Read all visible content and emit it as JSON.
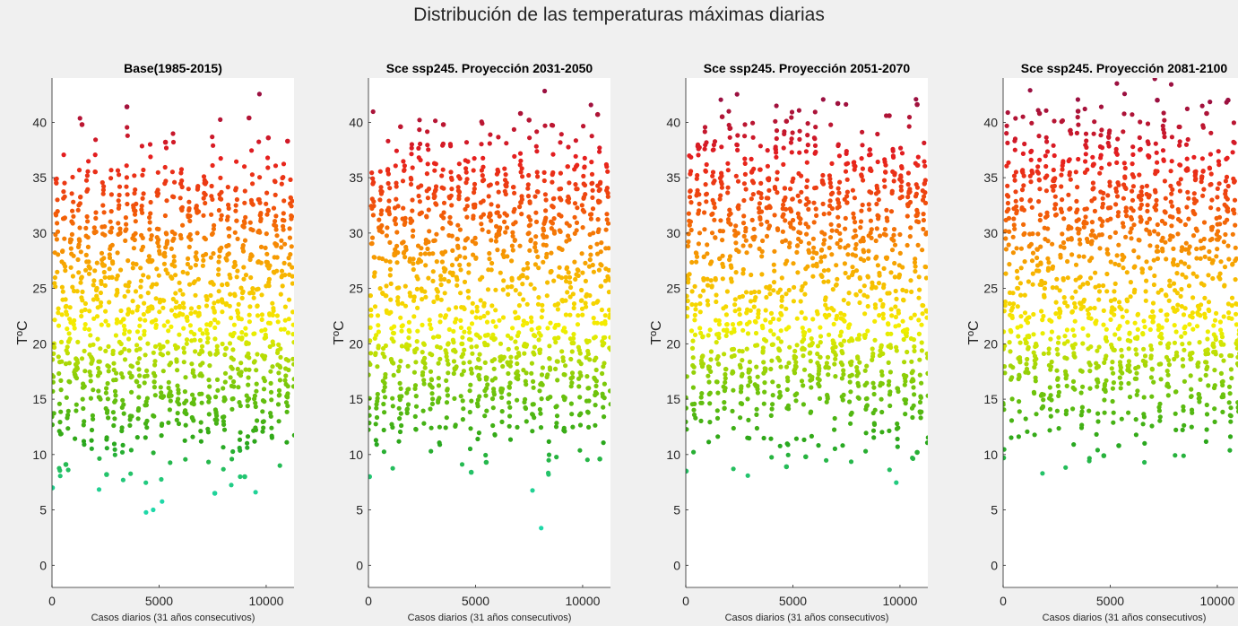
{
  "figure": {
    "title": "Distribución de las temperaturas máximas diarias"
  },
  "chart_data": [
    {
      "type": "scatter",
      "title": "Base(1985-2015)",
      "xlabel": "Casos diarios (31 años consecutivos)",
      "ylabel": "TºC",
      "xlim": [
        0,
        11300
      ],
      "ylim": [
        -2,
        44
      ],
      "xticks": [
        0,
        5000,
        10000
      ],
      "yticks": [
        0,
        5,
        10,
        15,
        20,
        25,
        30,
        35,
        40
      ],
      "n_days": 11315,
      "colormap": [
        "#1fd8a8",
        "#2aa61a",
        "#7ac80a",
        "#f4f000",
        "#f7b000",
        "#f25a08",
        "#e61e1e",
        "#9b1040"
      ],
      "summer_peak_band": [
        30,
        35
      ],
      "winter_trough_band": [
        12,
        16
      ],
      "outliers": [
        {
          "x": 20,
          "y": 7.0
        },
        {
          "x": 650,
          "y": 9.1
        },
        {
          "x": 2550,
          "y": 8.2
        },
        {
          "x": 7600,
          "y": 6.5
        },
        {
          "x": 9000,
          "y": 8.0
        },
        {
          "x": 1400,
          "y": 39.8
        },
        {
          "x": 3500,
          "y": 41.4
        },
        {
          "x": 5300,
          "y": 38.2
        },
        {
          "x": 9200,
          "y": 40.4
        },
        {
          "x": 10100,
          "y": 38.6
        },
        {
          "x": 11000,
          "y": 38.3
        }
      ]
    },
    {
      "type": "scatter",
      "title": "Sce ssp245. Proyección 2031-2050",
      "xlabel": "Casos diarios (31 años consecutivos)",
      "ylabel": "TºC",
      "xlim": [
        0,
        11300
      ],
      "ylim": [
        -2,
        44
      ],
      "xticks": [
        0,
        5000,
        10000
      ],
      "yticks": [
        0,
        5,
        10,
        15,
        20,
        25,
        30,
        35,
        40
      ],
      "n_days": 11315,
      "colormap": [
        "#1fd8a8",
        "#2aa61a",
        "#7ac80a",
        "#f4f000",
        "#f7b000",
        "#f25a08",
        "#e61e1e",
        "#9b1040"
      ],
      "summer_peak_band": [
        32,
        37
      ],
      "winter_trough_band": [
        13,
        17
      ],
      "outliers": [
        {
          "x": 50,
          "y": 8.0
        },
        {
          "x": 4800,
          "y": 8.4
        },
        {
          "x": 5500,
          "y": 9.3
        },
        {
          "x": 10800,
          "y": 9.6
        },
        {
          "x": 1500,
          "y": 39.6
        },
        {
          "x": 3500,
          "y": 39.8
        },
        {
          "x": 7100,
          "y": 40.8
        },
        {
          "x": 7500,
          "y": 40.2
        },
        {
          "x": 10700,
          "y": 40.7
        }
      ]
    },
    {
      "type": "scatter",
      "title": "Sce ssp245. Proyección 2051-2070",
      "xlabel": "Casos diarios (31 años consecutivos)",
      "ylabel": "TºC",
      "xlim": [
        0,
        11300
      ],
      "ylim": [
        -2,
        44
      ],
      "xticks": [
        0,
        5000,
        10000
      ],
      "yticks": [
        0,
        5,
        10,
        15,
        20,
        25,
        30,
        35,
        40
      ],
      "n_days": 11315,
      "colormap": [
        "#1fd8a8",
        "#2aa61a",
        "#7ac80a",
        "#f4f000",
        "#f7b000",
        "#f25a08",
        "#e61e1e",
        "#9b1040"
      ],
      "summer_peak_band": [
        33,
        38
      ],
      "winter_trough_band": [
        13.5,
        17.5
      ],
      "outliers": [
        {
          "x": 20,
          "y": 8.5
        },
        {
          "x": 4700,
          "y": 8.9
        },
        {
          "x": 5600,
          "y": 9.8
        },
        {
          "x": 10800,
          "y": 10.2
        },
        {
          "x": 1700,
          "y": 40.5
        },
        {
          "x": 4700,
          "y": 40.1
        },
        {
          "x": 7100,
          "y": 41.7
        },
        {
          "x": 9500,
          "y": 40.6
        },
        {
          "x": 10800,
          "y": 41.6
        }
      ]
    },
    {
      "type": "scatter",
      "title": "Sce ssp245. Proyección 2081-2100",
      "xlabel": "Casos diarios (31 años consecutivos)",
      "ylabel": "TºC",
      "xlim": [
        0,
        11300
      ],
      "ylim": [
        -2,
        44
      ],
      "xticks": [
        0,
        5000,
        10000
      ],
      "yticks": [
        0,
        5,
        10,
        15,
        20,
        25,
        30,
        35,
        40
      ],
      "n_days": 11315,
      "colormap": [
        "#1fd8a8",
        "#2aa61a",
        "#7ac80a",
        "#f4f000",
        "#f7b000",
        "#f25a08",
        "#e61e1e",
        "#9b1040"
      ],
      "summer_peak_band": [
        34,
        38.5
      ],
      "winter_trough_band": [
        14,
        18
      ],
      "outliers": [
        {
          "x": 20,
          "y": 9.7
        },
        {
          "x": 4700,
          "y": 9.9
        },
        {
          "x": 5400,
          "y": 10.8
        },
        {
          "x": 1700,
          "y": 40.8
        },
        {
          "x": 3500,
          "y": 41.0
        },
        {
          "x": 7200,
          "y": 42.0
        },
        {
          "x": 9500,
          "y": 40.8
        },
        {
          "x": 10500,
          "y": 42.0
        }
      ]
    }
  ]
}
